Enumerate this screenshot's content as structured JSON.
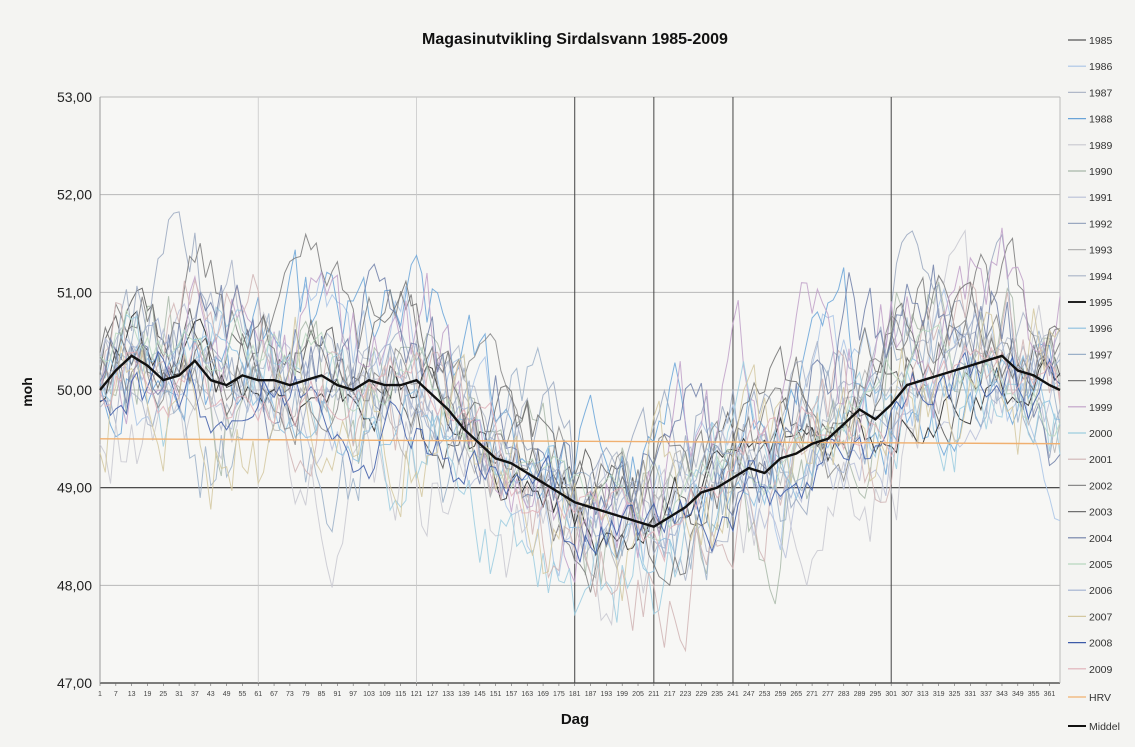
{
  "chart_data": {
    "type": "line",
    "title": "Magasinutvikling  Sirdalsvann 1985-2009",
    "xlabel": "Dag",
    "ylabel": "moh",
    "ylim": [
      47,
      53
    ],
    "xlim": [
      1,
      365
    ],
    "y_ticks": [
      "47,00",
      "48,00",
      "49,00",
      "50,00",
      "51,00",
      "52,00",
      "53,00"
    ],
    "x_ticks": [
      "1",
      "7",
      "13",
      "19",
      "25",
      "31",
      "37",
      "43",
      "49",
      "55",
      "61",
      "67",
      "73",
      "79",
      "85",
      "91",
      "97",
      "103",
      "109",
      "115",
      "121",
      "127",
      "133",
      "139",
      "145",
      "151",
      "157",
      "163",
      "169",
      "175",
      "181",
      "187",
      "193",
      "199",
      "205",
      "211",
      "217",
      "223",
      "229",
      "235",
      "241",
      "247",
      "253",
      "259",
      "265",
      "271",
      "277",
      "283",
      "289",
      "295",
      "301",
      "307",
      "313",
      "319",
      "325",
      "331",
      "337",
      "343",
      "349",
      "355",
      "361"
    ],
    "grid": true,
    "legend_position": "right",
    "legend": [
      "1985",
      "1986",
      "1987",
      "1988",
      "1989",
      "1990",
      "1991",
      "1992",
      "1993",
      "1994",
      "1995",
      "1996",
      "1997",
      "1998",
      "1999",
      "2000",
      "2001",
      "2002",
      "2003",
      "2004",
      "2005",
      "2006",
      "2007",
      "2008",
      "2009",
      "HRV",
      "Middel"
    ],
    "series_colors": [
      "#555555",
      "#a9c4e6",
      "#b0b8c8",
      "#6aa4d8",
      "#c8c8d0",
      "#a8b8a8",
      "#b8c0d8",
      "#9aa8c0",
      "#b4b4b4",
      "#aab4c8",
      "#222222",
      "#8cc0e0",
      "#9bb0c8",
      "#7a7a7a",
      "#c0a0c8",
      "#9ccde0",
      "#d0b4b4",
      "#8a8a8a",
      "#707070",
      "#6f7fa8",
      "#b8d8c0",
      "#a0b0d0",
      "#d4c8a0",
      "#3c5aa8",
      "#e0b0b8",
      "#f0b070",
      "#111111"
    ],
    "hrv": {
      "name": "HRV",
      "x": [
        1,
        365
      ],
      "y": [
        49.5,
        49.45
      ]
    },
    "middel": {
      "name": "Middel",
      "x": [
        1,
        7,
        13,
        19,
        25,
        31,
        37,
        43,
        49,
        55,
        61,
        67,
        73,
        79,
        85,
        91,
        97,
        103,
        109,
        115,
        121,
        127,
        133,
        139,
        145,
        151,
        157,
        163,
        169,
        175,
        181,
        187,
        193,
        199,
        205,
        211,
        217,
        223,
        229,
        235,
        241,
        247,
        253,
        259,
        265,
        271,
        277,
        283,
        289,
        295,
        301,
        307,
        313,
        319,
        325,
        331,
        337,
        343,
        349,
        355,
        361,
        365
      ],
      "y": [
        50.0,
        50.2,
        50.35,
        50.25,
        50.1,
        50.15,
        50.3,
        50.1,
        50.05,
        50.15,
        50.1,
        50.1,
        50.05,
        50.1,
        50.15,
        50.05,
        50.0,
        50.1,
        50.05,
        50.05,
        50.1,
        49.95,
        49.8,
        49.6,
        49.45,
        49.3,
        49.25,
        49.15,
        49.05,
        48.95,
        48.85,
        48.8,
        48.75,
        48.7,
        48.65,
        48.6,
        48.7,
        48.8,
        48.95,
        49.0,
        49.1,
        49.2,
        49.15,
        49.3,
        49.35,
        49.45,
        49.5,
        49.65,
        49.8,
        49.7,
        49.85,
        50.05,
        50.1,
        50.15,
        50.2,
        50.25,
        50.3,
        50.35,
        50.2,
        50.15,
        50.05,
        50.0
      ]
    },
    "year_series_count": 25
  }
}
